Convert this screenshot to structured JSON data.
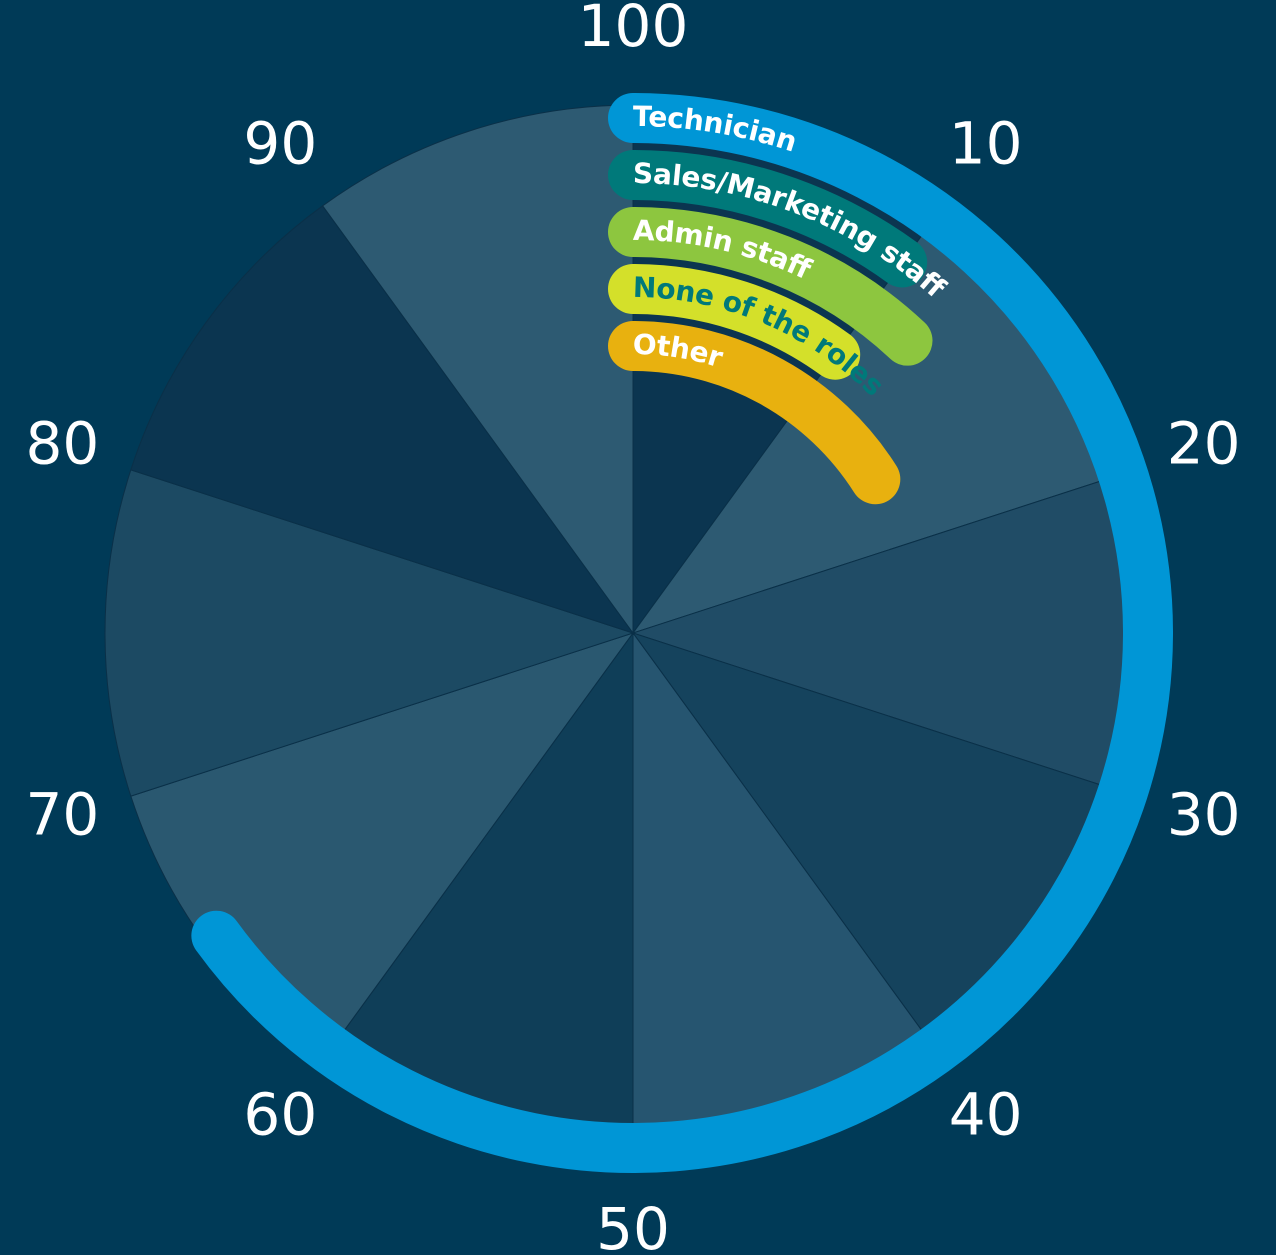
{
  "chart_data": {
    "type": "radial_bar",
    "categories": [
      "Technician",
      "Sales/Marketing staff",
      "Admin staff",
      "None of the roles",
      "Other"
    ],
    "values": [
      65,
      10,
      12,
      10,
      16
    ],
    "colors": [
      "#0096d6",
      "#00797a",
      "#8dc63f",
      "#d4e02a",
      "#e8b10f"
    ],
    "label_colors": [
      "#ffffff",
      "#ffffff",
      "#ffffff",
      "#00797a",
      "#ffffff"
    ],
    "ylim": [
      0,
      100
    ],
    "yticks": [
      10,
      20,
      30,
      40,
      50,
      60,
      70,
      80,
      90,
      100
    ]
  }
}
